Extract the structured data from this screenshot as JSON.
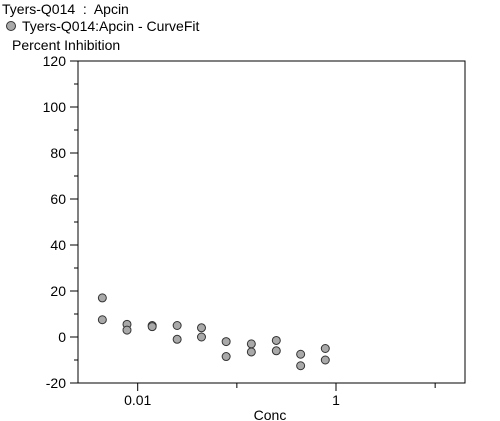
{
  "chart_data": {
    "type": "scatter",
    "title": "Tyers-Q014  :  Apcin",
    "ylabel": "Percent Inhibition",
    "xlabel": "Conc",
    "x_scale": "log",
    "xlim": [
      0.0025,
      20
    ],
    "ylim": [
      -20,
      120
    ],
    "y_ticks": [
      -20,
      0,
      20,
      40,
      60,
      80,
      100,
      120
    ],
    "x_tick_labels": [
      {
        "value": 0.01,
        "label": "0.01"
      },
      {
        "value": 1,
        "label": "1"
      }
    ],
    "series": [
      {
        "name": "Tyers-Q014:Apcin - CurveFit",
        "color": "#a9a9a9",
        "points": [
          {
            "x": 0.0044,
            "y": 17
          },
          {
            "x": 0.0044,
            "y": 7.5
          },
          {
            "x": 0.0078,
            "y": 5.5
          },
          {
            "x": 0.0078,
            "y": 3
          },
          {
            "x": 0.014,
            "y": 5
          },
          {
            "x": 0.014,
            "y": 4.5
          },
          {
            "x": 0.025,
            "y": 5
          },
          {
            "x": 0.025,
            "y": -1
          },
          {
            "x": 0.044,
            "y": 4
          },
          {
            "x": 0.044,
            "y": 0
          },
          {
            "x": 0.078,
            "y": -2
          },
          {
            "x": 0.078,
            "y": -8.5
          },
          {
            "x": 0.14,
            "y": -3
          },
          {
            "x": 0.14,
            "y": -6.5
          },
          {
            "x": 0.25,
            "y": -1.5
          },
          {
            "x": 0.25,
            "y": -6
          },
          {
            "x": 0.44,
            "y": -7.5
          },
          {
            "x": 0.44,
            "y": -12.5
          },
          {
            "x": 0.78,
            "y": -5
          },
          {
            "x": 0.78,
            "y": -10
          }
        ]
      }
    ]
  }
}
